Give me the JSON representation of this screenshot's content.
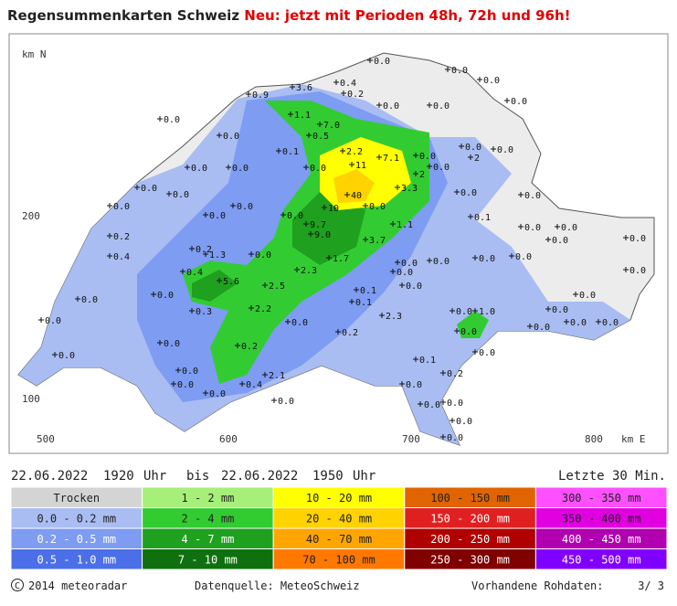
{
  "header": {
    "title": "Regensummenkarten Schweiz",
    "notice": "Neu: jetzt mit Perioden 48h, 72h und 96h!"
  },
  "map": {
    "axis_labels": {
      "north": "km N",
      "y200": "200",
      "y100": "100",
      "x500": "500",
      "x600": "600",
      "x700": "700",
      "x800": "800",
      "east": "km E"
    },
    "stations": [
      "3.6",
      "0.4",
      "0.2",
      "0.9",
      "1.1",
      "7.0",
      "0.5",
      "0.0",
      "0.0",
      "0.0",
      "0.0",
      "0.0",
      "0.0",
      "0.0",
      "0.0",
      "0.1",
      "2.2",
      "11",
      "7.1",
      "0.0",
      "0.0",
      "0.0",
      "2",
      "0.0",
      "0.0",
      "0.0",
      "2",
      "0.0",
      "3.3",
      "40",
      "0.0",
      "0.0",
      "0.0",
      "0.0",
      "10",
      "0.0",
      "0.0",
      "0.0",
      "0.0",
      "0.0",
      "9.7",
      "0.1",
      "1.1",
      "0.0",
      "0.0",
      "0.2",
      "9.0",
      "3.7",
      "0.0",
      "0.0",
      "0.2",
      "1.3",
      "0.0",
      "1.7",
      "0.0",
      "0.0",
      "0.0",
      "0.0",
      "0.4",
      "2.3",
      "0.0",
      "0.0",
      "0.4",
      "5.6",
      "2.5",
      "0.1",
      "0.0",
      "0.0",
      "0.0",
      "0.0",
      "2.2",
      "0.1",
      "0.0",
      "1.0",
      "0.0",
      "0.3",
      "0.0",
      "2.3",
      "0.0",
      "0.0",
      "0.0",
      "0.0",
      "0.2",
      "0.2",
      "0.0",
      "0.0",
      "0.0",
      "0.0",
      "0.1",
      "0.2",
      "0.0",
      "2.1",
      "0.4",
      "0.0",
      "0.0",
      "0.0",
      "0.0",
      "0.0",
      "0.0",
      "0.0",
      "0.0"
    ]
  },
  "period": {
    "from_date": "22.06.2022",
    "from_time": "1920",
    "from_unit": "Uhr",
    "separator": "bis",
    "to_date": "22.06.2022",
    "to_time": "1950",
    "to_unit": "Uhr",
    "window": "Letzte 30 Min."
  },
  "legend": {
    "items": [
      {
        "label": "Trocken",
        "color": "#d4d4d4"
      },
      {
        "label": "0.0 - 0.2 mm",
        "color": "#a9bdf2"
      },
      {
        "label": "0.2 - 0.5 mm",
        "color": "#7d9cf2"
      },
      {
        "label": "0.5 - 1.0 mm",
        "color": "#4b6fe8"
      },
      {
        "label": "1 - 2 mm",
        "color": "#a6f07a"
      },
      {
        "label": "2 - 4 mm",
        "color": "#32cc32"
      },
      {
        "label": "4 - 7 mm",
        "color": "#1fa01f"
      },
      {
        "label": "7 - 10 mm",
        "color": "#0e700e"
      },
      {
        "label": "10 - 20 mm",
        "color": "#ffff00"
      },
      {
        "label": "20 - 40 mm",
        "color": "#ffd200"
      },
      {
        "label": "40 - 70 mm",
        "color": "#ffa500"
      },
      {
        "label": "70 - 100 mm",
        "color": "#ff7800"
      },
      {
        "label": "100 - 150 mm",
        "color": "#e06400"
      },
      {
        "label": "150 - 200 mm",
        "color": "#e02020"
      },
      {
        "label": "200 - 250 mm",
        "color": "#b00000"
      },
      {
        "label": "250 - 300 mm",
        "color": "#800000"
      },
      {
        "label": "300 - 350 mm",
        "color": "#ff50ff"
      },
      {
        "label": "350 - 400 mm",
        "color": "#e000e0"
      },
      {
        "label": "400 - 450 mm",
        "color": "#b000b0"
      },
      {
        "label": "450 - 500 mm",
        "color": "#8000ff"
      }
    ]
  },
  "footer": {
    "copyright": "2014 meteoradar",
    "source": "Datenquelle: MeteoSchweiz",
    "raw_label": "Vorhandene Rohdaten:",
    "raw_value": "3/ 3"
  }
}
